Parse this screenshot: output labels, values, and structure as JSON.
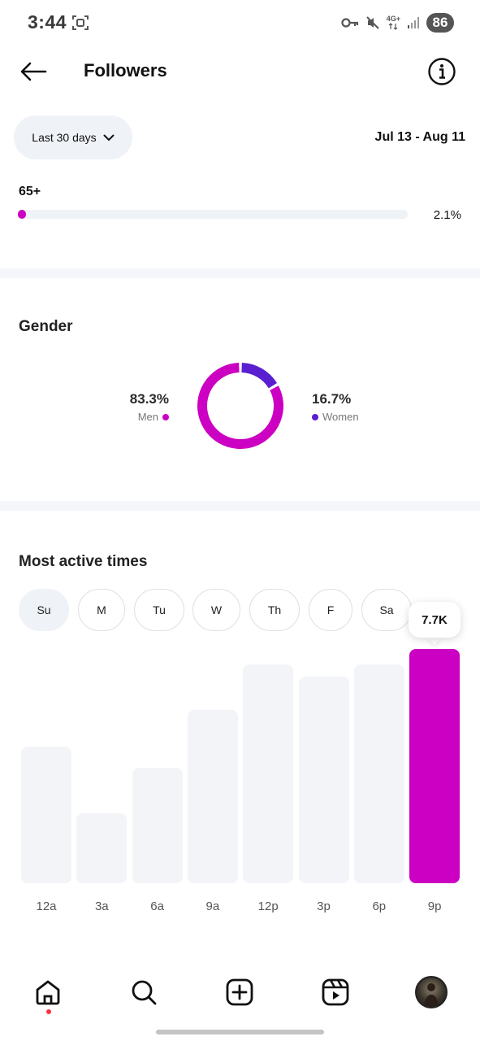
{
  "status_bar": {
    "time": "3:44",
    "network": "4G+",
    "battery": "86"
  },
  "header": {
    "title": "Followers"
  },
  "date_filter": {
    "range_label": "Last 30 days",
    "date_range": "Jul 13 - Aug 11"
  },
  "age": {
    "label": "65+",
    "percent_text": "2.1%",
    "percent_value": 2.1
  },
  "gender": {
    "title": "Gender",
    "men": {
      "percent": "83.3%",
      "label": "Men",
      "value": 83.3,
      "color": "#cc00c2"
    },
    "women": {
      "percent": "16.7%",
      "label": "Women",
      "value": 16.7,
      "color": "#5a1fd1"
    }
  },
  "active_times": {
    "title": "Most active times",
    "days": [
      "Su",
      "M",
      "Tu",
      "W",
      "Th",
      "F",
      "Sa"
    ],
    "selected_day": "Su",
    "tooltip": "7.7K"
  },
  "chart_data": {
    "type": "bar",
    "categories": [
      "12a",
      "3a",
      "6a",
      "9a",
      "12p",
      "3p",
      "6p",
      "9p"
    ],
    "values": [
      4.5,
      2.3,
      3.8,
      5.7,
      7.2,
      6.8,
      7.2,
      7.7
    ],
    "ylim": [
      0,
      7.7
    ],
    "highlight_index": 7,
    "highlight_color": "#cc00c2",
    "bar_color": "#f2f4f7",
    "grid": false
  },
  "nav": {
    "items": [
      {
        "name": "home",
        "icon": "home-icon"
      },
      {
        "name": "search",
        "icon": "search-icon"
      },
      {
        "name": "create",
        "icon": "plus-square-icon"
      },
      {
        "name": "reels",
        "icon": "reels-icon"
      },
      {
        "name": "profile",
        "icon": "avatar"
      }
    ]
  }
}
